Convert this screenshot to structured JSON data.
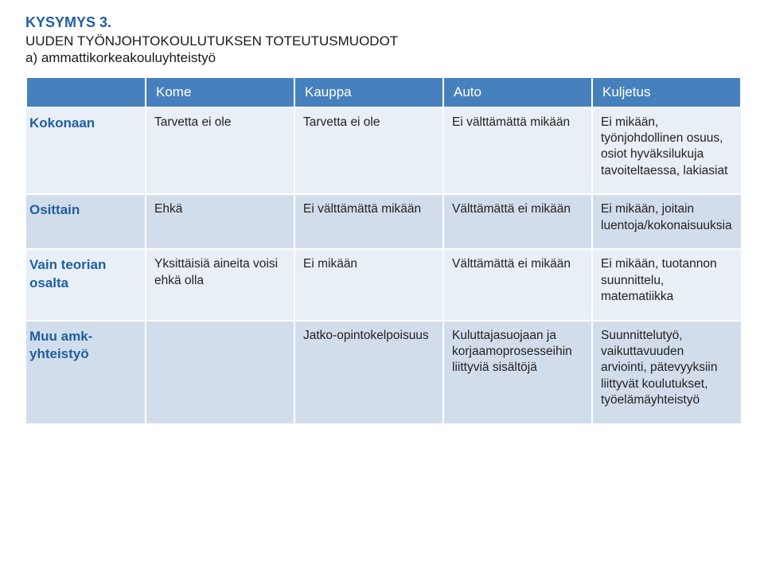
{
  "title": "KYSYMYS 3.",
  "subtitle_line1": "UUDEN TYÖNJOHTOKOULUTUKSEN TOTEUTUSMUODOT",
  "subtitle_line2": "a) ammattikorkeakouluyhteistyö",
  "colors": {
    "header_bg": "#4781bd",
    "header_text": "#ffffff",
    "row_odd_bg": "#e9eff7",
    "row_even_bg": "#d2ddec",
    "title_color": "#1f5fa0",
    "body_text": "#1a1a1a"
  },
  "font_sizes_pt": {
    "title": 14,
    "subtitle": 13,
    "header": 13,
    "rowlabel": 13,
    "cell": 12
  },
  "columns": [
    "",
    "Kome",
    "Kauppa",
    "Auto",
    "Kuljetus"
  ],
  "rows": [
    {
      "label": "Kokonaan",
      "cells": [
        "Tarvetta ei ole",
        "Tarvetta ei ole",
        "Ei välttämättä mikään",
        "Ei mikään, työnjohdollinen osuus, osiot hyväksilukuja tavoiteltaessa, lakiasiat"
      ]
    },
    {
      "label": "Osittain",
      "cells": [
        "Ehkä",
        "Ei välttämättä mikään",
        "Välttämättä ei mikään",
        "Ei mikään, joitain luentoja/kokonaisuuksia"
      ]
    },
    {
      "label": "Vain teorian osalta",
      "cells": [
        "Yksittäisiä aineita voisi ehkä olla",
        "Ei mikään",
        "Välttämättä ei mikään",
        "Ei mikään, tuotannon suunnittelu, matematiikka"
      ]
    },
    {
      "label": "Muu amk-yhteistyö",
      "cells": [
        "",
        "Jatko-opintokelpoisuus",
        "Kuluttajasuojaan ja korjaamoprosesseihin liittyviä sisältöjä",
        "Suunnittelutyö, vaikuttavuuden arviointi, pätevyyksiin liittyvät koulutukset, työelämäyhteistyö"
      ]
    }
  ]
}
